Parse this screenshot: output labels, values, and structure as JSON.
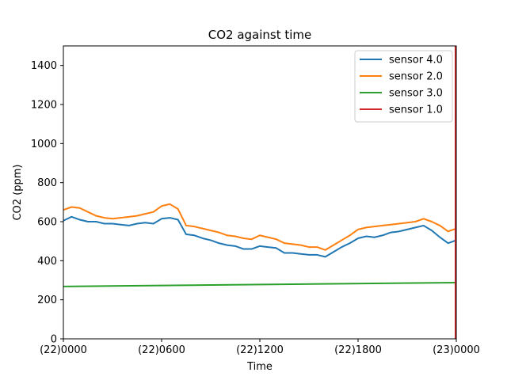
{
  "chart_data": {
    "type": "line",
    "title": "CO2 against  time",
    "xlabel": "Time",
    "ylabel": "CO2 (ppm)",
    "x_unit": "hour",
    "xlim": [
      0,
      24
    ],
    "ylim": [
      0,
      1500
    ],
    "x_ticks": [
      {
        "value": 0,
        "label": "(22)0000"
      },
      {
        "value": 6,
        "label": "(22)0600"
      },
      {
        "value": 12,
        "label": "(22)1200"
      },
      {
        "value": 18,
        "label": "(22)1800"
      },
      {
        "value": 24,
        "label": "(23)0000"
      }
    ],
    "y_ticks": [
      0,
      200,
      400,
      600,
      800,
      1000,
      1200,
      1400
    ],
    "grid": false,
    "legend_position": "top-right",
    "series": [
      {
        "name": "sensor 4.0",
        "color": "#1f77b4",
        "x": [
          0,
          0.5,
          1,
          1.5,
          2,
          2.5,
          3,
          3.5,
          4,
          4.5,
          5,
          5.5,
          6,
          6.5,
          7,
          7.5,
          8,
          8.5,
          9,
          9.5,
          10,
          10.5,
          11,
          11.5,
          12,
          12.5,
          13,
          13.5,
          14,
          14.5,
          15,
          15.5,
          16,
          16.5,
          17,
          17.5,
          18,
          18.5,
          19,
          19.5,
          20,
          20.5,
          21,
          21.5,
          22,
          22.5,
          23,
          23.5,
          24
        ],
        "values": [
          605,
          625,
          610,
          600,
          600,
          590,
          590,
          585,
          580,
          590,
          595,
          590,
          615,
          620,
          610,
          535,
          530,
          515,
          505,
          490,
          480,
          475,
          460,
          460,
          475,
          470,
          465,
          440,
          440,
          435,
          430,
          430,
          420,
          445,
          470,
          490,
          515,
          525,
          520,
          530,
          545,
          550,
          560,
          570,
          580,
          555,
          520,
          490,
          505
        ]
      },
      {
        "name": "sensor 2.0",
        "color": "#ff7f0e",
        "x": [
          0,
          0.5,
          1,
          1.5,
          2,
          2.5,
          3,
          3.5,
          4,
          4.5,
          5,
          5.5,
          6,
          6.5,
          7,
          7.5,
          8,
          8.5,
          9,
          9.5,
          10,
          10.5,
          11,
          11.5,
          12,
          12.5,
          13,
          13.5,
          14,
          14.5,
          15,
          15.5,
          16,
          16.5,
          17,
          17.5,
          18,
          18.5,
          19,
          19.5,
          20,
          20.5,
          21,
          21.5,
          22,
          22.5,
          23,
          23.5,
          24
        ],
        "values": [
          660,
          675,
          670,
          650,
          630,
          620,
          615,
          620,
          625,
          630,
          640,
          650,
          680,
          690,
          665,
          580,
          575,
          565,
          555,
          545,
          530,
          525,
          515,
          510,
          530,
          520,
          510,
          490,
          485,
          480,
          470,
          470,
          455,
          480,
          505,
          530,
          560,
          570,
          575,
          580,
          585,
          590,
          595,
          600,
          615,
          600,
          580,
          550,
          565
        ]
      },
      {
        "name": "sensor 3.0",
        "color": "#2ca02c",
        "x": [
          0,
          24
        ],
        "values": [
          268,
          288
        ]
      },
      {
        "name": "sensor 1.0",
        "color": "#d62728",
        "x": [
          23.95,
          23.95
        ],
        "values": [
          0,
          1500
        ]
      }
    ]
  }
}
